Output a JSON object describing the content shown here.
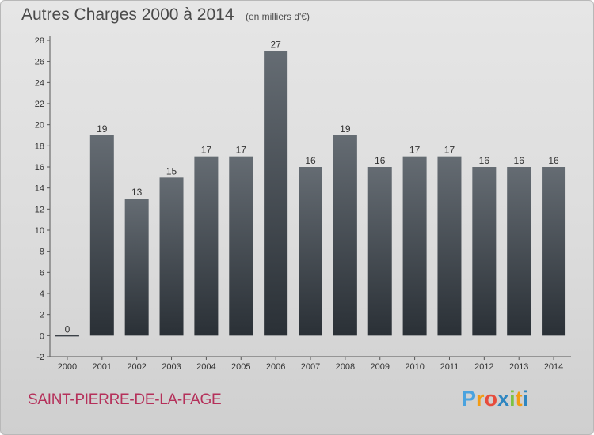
{
  "title": "Autres Charges 2000 à 2014",
  "subtitle": "(en milliers d'€)",
  "commune": "SAINT-PIERRE-DE-LA-FAGE",
  "logo": {
    "letters": [
      "P",
      "r",
      "o",
      "x",
      "i",
      "t",
      "i"
    ],
    "colors": [
      "#4aa3df",
      "#f39c12",
      "#e74c3c",
      "#2e86c1",
      "#7dc242",
      "#f39c12",
      "#2e86c1"
    ]
  },
  "chart_data": {
    "type": "bar",
    "categories": [
      "2000",
      "2001",
      "2002",
      "2003",
      "2004",
      "2005",
      "2006",
      "2007",
      "2008",
      "2009",
      "2010",
      "2011",
      "2012",
      "2013",
      "2014"
    ],
    "values": [
      0,
      19,
      13,
      15,
      17,
      17,
      27,
      16,
      19,
      16,
      17,
      17,
      16,
      16,
      16
    ],
    "data_labels": [
      "0",
      "19",
      "13",
      "15",
      "17",
      "17",
      "27",
      "16",
      "19",
      "16",
      "17",
      "17",
      "16",
      "16",
      "16"
    ],
    "yticks": [
      -2,
      0,
      2,
      4,
      6,
      8,
      10,
      12,
      14,
      16,
      18,
      20,
      22,
      24,
      26,
      28
    ],
    "ylim": [
      -2,
      28
    ],
    "grid": false,
    "bar_color": "#3c4248"
  }
}
